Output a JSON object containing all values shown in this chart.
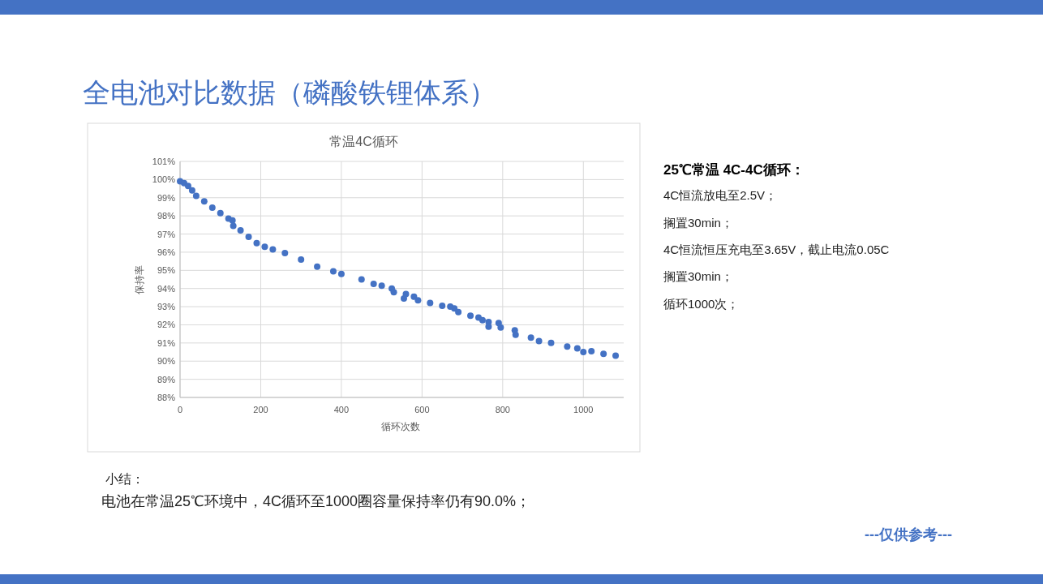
{
  "chart_data": {
    "type": "scatter",
    "title": "常温4C循环",
    "xlabel": "循环次数",
    "ylabel": "保持率",
    "x": [
      0,
      10,
      20,
      30,
      40,
      60,
      80,
      100,
      120,
      130,
      132,
      150,
      170,
      190,
      210,
      230,
      260,
      300,
      340,
      380,
      400,
      450,
      480,
      500,
      525,
      530,
      555,
      560,
      580,
      590,
      620,
      650,
      670,
      680,
      690,
      720,
      740,
      750,
      765,
      765,
      790,
      795,
      830,
      832,
      870,
      890,
      920,
      960,
      985,
      1000,
      1020,
      1050,
      1080
    ],
    "series": [
      {
        "color": "#4472c4",
        "values": [
          99.9,
          99.8,
          99.65,
          99.4,
          99.1,
          98.8,
          98.45,
          98.15,
          97.85,
          97.75,
          97.45,
          97.2,
          96.85,
          96.5,
          96.3,
          96.15,
          95.95,
          95.6,
          95.2,
          94.95,
          94.8,
          94.5,
          94.25,
          94.15,
          94.0,
          93.8,
          93.45,
          93.7,
          93.55,
          93.35,
          93.2,
          93.05,
          93.0,
          92.9,
          92.7,
          92.5,
          92.4,
          92.25,
          92.15,
          91.9,
          92.1,
          91.85,
          91.7,
          91.45,
          91.3,
          91.1,
          91.0,
          90.8,
          90.7,
          90.5,
          90.55,
          90.4,
          90.3
        ]
      }
    ],
    "xlim": [
      0,
      1100
    ],
    "xticks": [
      0,
      200,
      400,
      600,
      800,
      1000
    ],
    "ylim": [
      88,
      101
    ],
    "yticks": [
      {
        "value": 88,
        "label": "88%"
      },
      {
        "value": 89,
        "label": "89%"
      },
      {
        "value": 90,
        "label": "90%"
      },
      {
        "value": 91,
        "label": "91%"
      },
      {
        "value": 92,
        "label": "92%"
      },
      {
        "value": 93,
        "label": "93%"
      },
      {
        "value": 94,
        "label": "94%"
      },
      {
        "value": 95,
        "label": "95%"
      },
      {
        "value": 96,
        "label": "96%"
      },
      {
        "value": 97,
        "label": "97%"
      },
      {
        "value": 98,
        "label": "98%"
      },
      {
        "value": 99,
        "label": "99%"
      },
      {
        "value": 100,
        "label": "100%"
      },
      {
        "value": 101,
        "label": "101%"
      }
    ],
    "grid": true,
    "marker": "circle",
    "annotations": [
      "全电池对比数据（磷酸铁锂体系）",
      "25℃常温 4C-4C循环：",
      "4C恒流放电至2.5V；",
      "搁置30min；",
      "4C恒流恒压充电至3.65V，截止电流0.05C",
      "搁置30min；",
      "循环1000次；",
      "小结：",
      "电池在常温25℃环境中，4C循环至1000圈容量保持率仍有90.0%；",
      "---仅供参考---"
    ]
  }
}
